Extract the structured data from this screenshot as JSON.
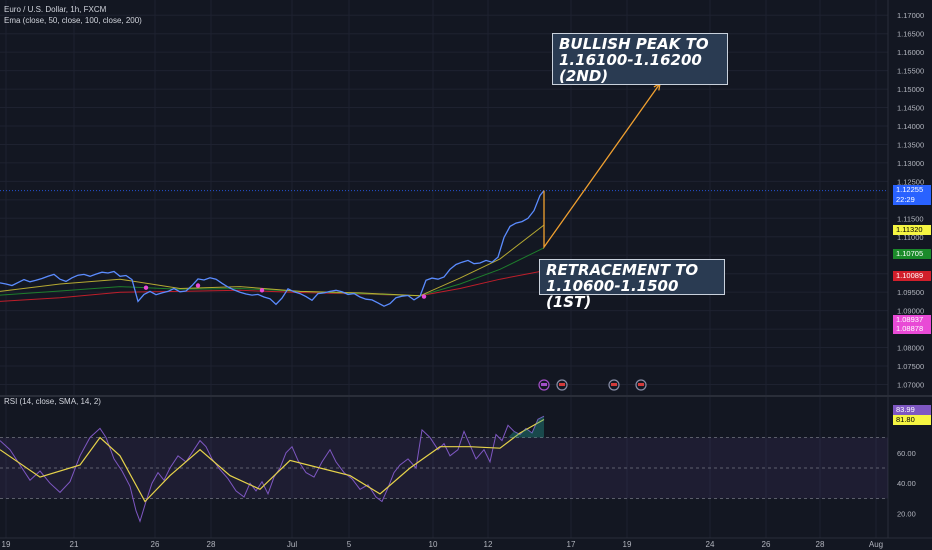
{
  "header": {
    "symbol_line": "Euro / U.S. Dollar, 1h, FXCM",
    "ema_line": "Ema (close, 50, close, 100, close, 200)",
    "rsi_line": "RSI (14, close, SMA, 14, 2)"
  },
  "annotations": {
    "peak": "BULLISH PEAK TO 1.16100-1.16200 (2ND)",
    "retracement": "RETRACEMENT TO 1.10600-1.1500 (1ST)"
  },
  "price_labels": {
    "last": "1.12255",
    "countdown": "22:29",
    "ema50": "1.11320",
    "ema100": "1.10705",
    "ema200": "1.10089",
    "pink_a": "1.08937",
    "pink_b": "1.08878"
  },
  "rsi_labels": {
    "rsi": "83.99",
    "sma": "81.80"
  },
  "chart_data": [
    {
      "type": "line",
      "title": "Euro / U.S. Dollar, 1h, FXCM",
      "x_ticks": [
        "19",
        "21",
        "26",
        "28",
        "Jul",
        "5",
        "10",
        "12",
        "17",
        "19",
        "24",
        "26",
        "28",
        "Aug"
      ],
      "y_ticks": [
        "1.17000",
        "1.16500",
        "1.16000",
        "1.15500",
        "1.15000",
        "1.14500",
        "1.14000",
        "1.13500",
        "1.13000",
        "1.12500",
        "1.12000",
        "1.11500",
        "1.11000",
        "1.10500",
        "1.10000",
        "1.09500",
        "1.09000",
        "1.08500",
        "1.08000",
        "1.07500",
        "1.07000"
      ],
      "ylim": [
        1.0685,
        1.1725
      ],
      "series": [
        {
          "name": "Price",
          "color": "#5b8cff",
          "values": [
            [
              0,
              1.0975
            ],
            [
              6,
              1.0972
            ],
            [
              12,
              1.0968
            ],
            [
              18,
              1.0976
            ],
            [
              24,
              1.0984
            ],
            [
              30,
              1.0978
            ],
            [
              36,
              1.0982
            ],
            [
              42,
              1.0987
            ],
            [
              48,
              1.0993
            ],
            [
              54,
              1.0998
            ],
            [
              60,
              1.0985
            ],
            [
              66,
              1.0979
            ],
            [
              72,
              1.0989
            ],
            [
              78,
              1.0996
            ],
            [
              84,
              1.0998
            ],
            [
              90,
              1.0993
            ],
            [
              96,
              1.0999
            ],
            [
              102,
              1.1004
            ],
            [
              108,
              1.1002
            ],
            [
              114,
              1.1006
            ],
            [
              120,
              1.0993
            ],
            [
              126,
              1.0995
            ],
            [
              132,
              1.0984
            ],
            [
              138,
              1.0925
            ],
            [
              144,
              1.0944
            ],
            [
              150,
              1.0952
            ],
            [
              156,
              1.0943
            ],
            [
              162,
              1.0948
            ],
            [
              168,
              1.0952
            ],
            [
              174,
              1.096
            ],
            [
              180,
              1.0951
            ],
            [
              186,
              1.0953
            ],
            [
              192,
              1.0968
            ],
            [
              198,
              1.0986
            ],
            [
              204,
              1.0983
            ],
            [
              210,
              1.0989
            ],
            [
              216,
              1.0985
            ],
            [
              222,
              1.0974
            ],
            [
              228,
              1.0964
            ],
            [
              234,
              1.0956
            ],
            [
              240,
              1.095
            ],
            [
              246,
              1.0945
            ],
            [
              252,
              1.0942
            ],
            [
              258,
              1.0944
            ],
            [
              264,
              1.0937
            ],
            [
              270,
              1.0932
            ],
            [
              276,
              1.0917
            ],
            [
              282,
              1.0934
            ],
            [
              288,
              1.0959
            ],
            [
              294,
              1.0951
            ],
            [
              300,
              1.0946
            ],
            [
              306,
              1.0938
            ],
            [
              312,
              1.0928
            ],
            [
              318,
              1.0946
            ],
            [
              324,
              1.0948
            ],
            [
              330,
              1.0952
            ],
            [
              336,
              1.0955
            ],
            [
              342,
              1.0951
            ],
            [
              348,
              1.0944
            ],
            [
              354,
              1.0946
            ],
            [
              360,
              1.0937
            ],
            [
              366,
              1.0931
            ],
            [
              372,
              1.0929
            ],
            [
              378,
              1.0921
            ],
            [
              384,
              1.0912
            ],
            [
              390,
              1.0919
            ],
            [
              396,
              1.0935
            ],
            [
              402,
              1.0939
            ],
            [
              408,
              1.0941
            ],
            [
              414,
              1.0929
            ],
            [
              420,
              1.0939
            ],
            [
              426,
              1.0982
            ],
            [
              432,
              1.0988
            ],
            [
              438,
              1.0985
            ],
            [
              444,
              1.0991
            ],
            [
              450,
              1.1012
            ],
            [
              456,
              1.1025
            ],
            [
              462,
              1.1031
            ],
            [
              468,
              1.1036
            ],
            [
              474,
              1.1027
            ],
            [
              480,
              1.1029
            ],
            [
              486,
              1.1036
            ],
            [
              492,
              1.1031
            ],
            [
              498,
              1.1045
            ],
            [
              504,
              1.1098
            ],
            [
              510,
              1.1128
            ],
            [
              516,
              1.1137
            ],
            [
              522,
              1.1141
            ],
            [
              528,
              1.115
            ],
            [
              534,
              1.1171
            ],
            [
              540,
              1.1212
            ],
            [
              544,
              1.1225
            ]
          ]
        },
        {
          "name": "EMA 50",
          "color": "#c8b934",
          "values": [
            [
              0,
              1.0952
            ],
            [
              60,
              1.0972
            ],
            [
              120,
              1.0985
            ],
            [
              180,
              1.096
            ],
            [
              240,
              1.0965
            ],
            [
              300,
              1.0952
            ],
            [
              360,
              1.0948
            ],
            [
              420,
              1.094
            ],
            [
              460,
              1.0988
            ],
            [
              500,
              1.104
            ],
            [
              544,
              1.1132
            ]
          ]
        },
        {
          "name": "EMA 100",
          "color": "#1f8a2e",
          "values": [
            [
              0,
              1.0942
            ],
            [
              60,
              1.0953
            ],
            [
              120,
              1.0965
            ],
            [
              180,
              1.0958
            ],
            [
              240,
              1.096
            ],
            [
              300,
              1.0952
            ],
            [
              360,
              1.0946
            ],
            [
              420,
              1.094
            ],
            [
              460,
              1.0972
            ],
            [
              500,
              1.1012
            ],
            [
              544,
              1.107
            ]
          ]
        },
        {
          "name": "EMA 200",
          "color": "#d11f2b",
          "values": [
            [
              0,
              1.0925
            ],
            [
              60,
              1.0935
            ],
            [
              120,
              1.095
            ],
            [
              180,
              1.0952
            ],
            [
              240,
              1.0955
            ],
            [
              300,
              1.0949
            ],
            [
              360,
              1.0945
            ],
            [
              420,
              1.094
            ],
            [
              460,
              1.096
            ],
            [
              500,
              1.0985
            ],
            [
              544,
              1.1008
            ]
          ]
        }
      ],
      "annotations": [
        {
          "text": "BULLISH PEAK TO 1.16100-1.16200 (2ND)"
        },
        {
          "text": "RETRACEMENT TO 1.10600-1.1500 (1ST)"
        }
      ]
    },
    {
      "type": "line",
      "title": "RSI (14, close, SMA, 14, 2)",
      "y_ticks": [
        "60.00",
        "40.00",
        "20.00"
      ],
      "ylim": [
        8,
        92
      ],
      "bands": [
        70,
        50,
        30
      ],
      "series": [
        {
          "name": "RSI",
          "color": "#7e57c2",
          "values": [
            [
              0,
              68
            ],
            [
              10,
              62
            ],
            [
              20,
              52
            ],
            [
              30,
              42
            ],
            [
              40,
              48
            ],
            [
              50,
              40
            ],
            [
              60,
              34
            ],
            [
              70,
              41
            ],
            [
              80,
              58
            ],
            [
              90,
              70
            ],
            [
              100,
              76
            ],
            [
              106,
              70
            ],
            [
              114,
              56
            ],
            [
              122,
              48
            ],
            [
              130,
              38
            ],
            [
              136,
              22
            ],
            [
              140,
              15
            ],
            [
              146,
              28
            ],
            [
              152,
              40
            ],
            [
              158,
              47
            ],
            [
              164,
              42
            ],
            [
              170,
              50
            ],
            [
              178,
              58
            ],
            [
              186,
              54
            ],
            [
              194,
              62
            ],
            [
              200,
              68
            ],
            [
              206,
              64
            ],
            [
              212,
              56
            ],
            [
              220,
              49
            ],
            [
              228,
              43
            ],
            [
              236,
              35
            ],
            [
              244,
              31
            ],
            [
              250,
              40
            ],
            [
              256,
              35
            ],
            [
              262,
              41
            ],
            [
              268,
              33
            ],
            [
              274,
              44
            ],
            [
              280,
              50
            ],
            [
              286,
              60
            ],
            [
              292,
              64
            ],
            [
              298,
              55
            ],
            [
              306,
              47
            ],
            [
              314,
              44
            ],
            [
              322,
              54
            ],
            [
              330,
              62
            ],
            [
              336,
              54
            ],
            [
              344,
              47
            ],
            [
              352,
              43
            ],
            [
              360,
              36
            ],
            [
              368,
              39
            ],
            [
              376,
              31
            ],
            [
              382,
              28
            ],
            [
              388,
              37
            ],
            [
              394,
              47
            ],
            [
              400,
              52
            ],
            [
              408,
              56
            ],
            [
              416,
              50
            ],
            [
              422,
              75
            ],
            [
              430,
              70
            ],
            [
              438,
              62
            ],
            [
              444,
              66
            ],
            [
              450,
              58
            ],
            [
              458,
              62
            ],
            [
              464,
              74
            ],
            [
              470,
              65
            ],
            [
              476,
              56
            ],
            [
              484,
              62
            ],
            [
              490,
              54
            ],
            [
              496,
              72
            ],
            [
              502,
              68
            ],
            [
              508,
              78
            ],
            [
              514,
              74
            ],
            [
              520,
              72
            ],
            [
              526,
              76
            ],
            [
              532,
              73
            ],
            [
              538,
              82
            ],
            [
              544,
              84
            ]
          ]
        },
        {
          "name": "SMA",
          "color": "#e6d34a",
          "values": [
            [
              0,
              62
            ],
            [
              40,
              44
            ],
            [
              80,
              52
            ],
            [
              100,
              70
            ],
            [
              120,
              58
            ],
            [
              145,
              28
            ],
            [
              170,
              45
            ],
            [
              200,
              62
            ],
            [
              230,
              45
            ],
            [
              260,
              36
            ],
            [
              290,
              55
            ],
            [
              320,
              50
            ],
            [
              350,
              45
            ],
            [
              380,
              33
            ],
            [
              410,
              50
            ],
            [
              440,
              64
            ],
            [
              470,
              64
            ],
            [
              500,
              63
            ],
            [
              520,
              73
            ],
            [
              544,
              81.8
            ]
          ]
        }
      ]
    }
  ]
}
